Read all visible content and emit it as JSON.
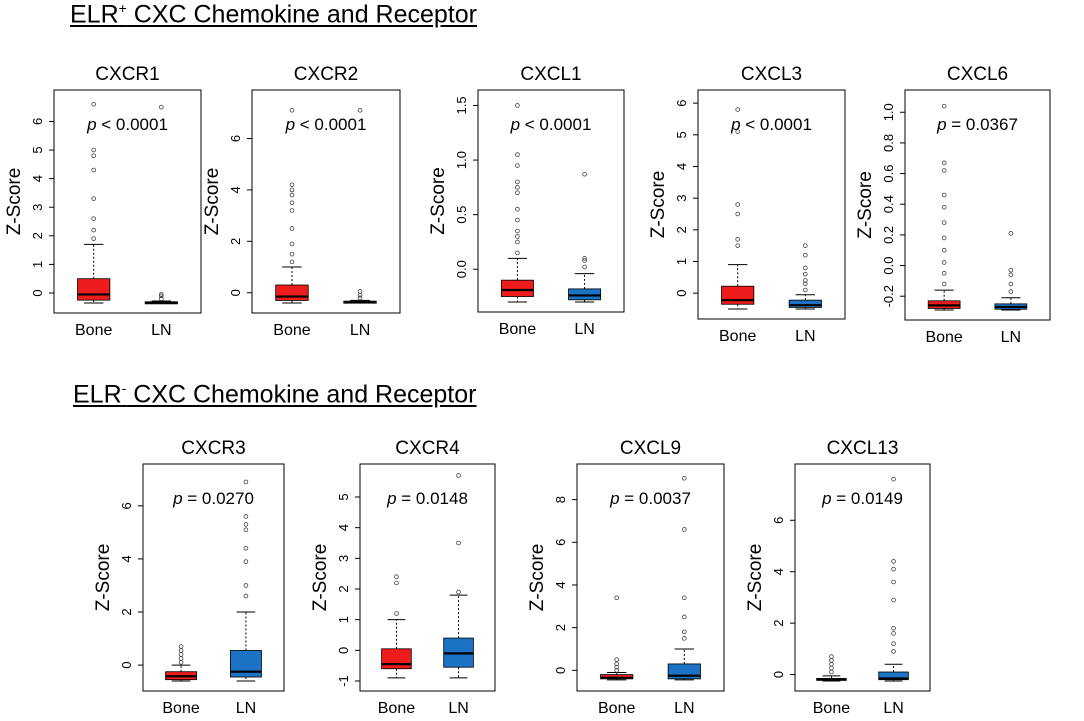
{
  "sections": {
    "top": {
      "title_main": "ELR",
      "title_sup": "+",
      "title_rest": " CXC Chemokine and Receptor"
    },
    "bottom": {
      "title_main": "ELR",
      "title_sup": "-",
      "title_rest": " CXC Chemokine and Receptor"
    }
  },
  "colors": {
    "bone": "#ee1c1c",
    "ln": "#1c72c4",
    "axis": "#000000"
  },
  "chart_data": [
    {
      "type": "boxplot",
      "title": "CXCR1",
      "ylabel": "Z-Score",
      "p_prefix": "p",
      "p_text": " < 0.0001",
      "categories": [
        "Bone",
        "LN"
      ],
      "yticks": [
        0,
        1,
        2,
        3,
        4,
        5,
        6
      ],
      "ylim": [
        -0.35,
        6.75
      ],
      "boxes": [
        {
          "name": "Bone",
          "q1": -0.25,
          "median": -0.05,
          "q3": 0.5,
          "whisker_low": -0.35,
          "whisker_high": 1.7,
          "outliers": [
            1.9,
            2.2,
            2.6,
            3.3,
            4.3,
            4.8,
            5.0,
            6.6
          ]
        },
        {
          "name": "LN",
          "q1": -0.35,
          "median": -0.33,
          "q3": -0.31,
          "whisker_low": -0.35,
          "whisker_high": -0.28,
          "outliers": [
            -0.2,
            -0.1,
            -0.05,
            6.5
          ]
        }
      ]
    },
    {
      "type": "boxplot",
      "title": "CXCR2",
      "ylabel": "Z-Score",
      "p_prefix": "p",
      "p_text": " < 0.0001",
      "categories": [
        "Bone",
        "LN"
      ],
      "yticks": [
        0,
        2,
        4,
        6
      ],
      "ylim": [
        -0.4,
        7.5
      ],
      "boxes": [
        {
          "name": "Bone",
          "q1": -0.3,
          "median": -0.15,
          "q3": 0.3,
          "whisker_low": -0.4,
          "whisker_high": 1.0,
          "outliers": [
            1.2,
            1.5,
            1.9,
            2.5,
            3.2,
            3.5,
            3.8,
            4.0,
            4.2,
            7.1
          ]
        },
        {
          "name": "LN",
          "q1": -0.38,
          "median": -0.36,
          "q3": -0.33,
          "whisker_low": -0.4,
          "whisker_high": -0.3,
          "outliers": [
            -0.2,
            -0.1,
            0.05,
            7.1
          ]
        }
      ]
    },
    {
      "type": "boxplot",
      "title": "CXCL1",
      "ylabel": "Z-Score",
      "p_prefix": "p",
      "p_text": " < 0.0001",
      "categories": [
        "Bone",
        "LN"
      ],
      "yticks": [
        0.0,
        0.5,
        1.0,
        1.5
      ],
      "ytick_labels": [
        "0.0",
        "0.5",
        "1.0",
        "1.5"
      ],
      "ylim": [
        -0.3,
        1.55
      ],
      "boxes": [
        {
          "name": "Bone",
          "q1": -0.25,
          "median": -0.19,
          "q3": -0.1,
          "whisker_low": -0.3,
          "whisker_high": 0.1,
          "outliers": [
            0.15,
            0.25,
            0.3,
            0.35,
            0.45,
            0.55,
            0.7,
            0.75,
            0.8,
            0.95,
            1.05,
            1.5
          ]
        },
        {
          "name": "LN",
          "q1": -0.28,
          "median": -0.24,
          "q3": -0.18,
          "whisker_low": -0.3,
          "whisker_high": -0.04,
          "outliers": [
            0.02,
            0.08,
            0.1,
            0.87
          ]
        }
      ]
    },
    {
      "type": "boxplot",
      "title": "CXCL3",
      "ylabel": "Z-Score",
      "p_prefix": "p",
      "p_text": " < 0.0001",
      "categories": [
        "Bone",
        "LN"
      ],
      "yticks": [
        0,
        1,
        2,
        3,
        4,
        5,
        6
      ],
      "ylim": [
        -0.5,
        6.1
      ],
      "boxes": [
        {
          "name": "Bone",
          "q1": -0.35,
          "median": -0.22,
          "q3": 0.22,
          "whisker_low": -0.5,
          "whisker_high": 0.9,
          "outliers": [
            1.5,
            1.7,
            2.5,
            2.8,
            5.1,
            5.8
          ]
        },
        {
          "name": "LN",
          "q1": -0.45,
          "median": -0.38,
          "q3": -0.22,
          "whisker_low": -0.5,
          "whisker_high": -0.05,
          "outliers": [
            0.1,
            0.3,
            0.4,
            0.6,
            0.8,
            1.2,
            1.5
          ]
        }
      ]
    },
    {
      "type": "boxplot",
      "title": "CXCL6",
      "ylabel": "Z-Score",
      "p_prefix": "p",
      "p_text": " = 0.0367",
      "categories": [
        "Bone",
        "LN"
      ],
      "yticks": [
        -0.2,
        0.0,
        0.2,
        0.4,
        0.6,
        0.8,
        1.0
      ],
      "ytick_labels": [
        "-0.2",
        "0.0",
        "0.2",
        "0.4",
        "0.6",
        "0.8",
        "1.0"
      ],
      "ylim": [
        -0.29,
        1.08
      ],
      "boxes": [
        {
          "name": "Bone",
          "q1": -0.28,
          "median": -0.26,
          "q3": -0.23,
          "whisker_low": -0.29,
          "whisker_high": -0.16,
          "outliers": [
            -0.12,
            -0.05,
            0.02,
            0.1,
            0.18,
            0.28,
            0.38,
            0.46,
            0.62,
            0.67,
            1.04
          ]
        },
        {
          "name": "LN",
          "q1": -0.285,
          "median": -0.27,
          "q3": -0.25,
          "whisker_low": -0.29,
          "whisker_high": -0.21,
          "outliers": [
            -0.17,
            -0.12,
            -0.06,
            -0.03,
            0.21
          ]
        }
      ]
    },
    {
      "type": "boxplot",
      "title": "CXCR3",
      "ylabel": "Z-Score",
      "p_prefix": "p",
      "p_text": " = 0.0270",
      "categories": [
        "Bone",
        "LN"
      ],
      "yticks": [
        0,
        2,
        4,
        6
      ],
      "ylim": [
        -0.6,
        7.2
      ],
      "boxes": [
        {
          "name": "Bone",
          "q1": -0.55,
          "median": -0.42,
          "q3": -0.25,
          "whisker_low": -0.6,
          "whisker_high": 0.0,
          "outliers": [
            0.1,
            0.25,
            0.4,
            0.55,
            0.7
          ]
        },
        {
          "name": "LN",
          "q1": -0.45,
          "median": -0.25,
          "q3": 0.55,
          "whisker_low": -0.6,
          "whisker_high": 2.0,
          "outliers": [
            2.6,
            3.0,
            3.9,
            4.4,
            5.1,
            5.3,
            5.6,
            6.9
          ]
        }
      ]
    },
    {
      "type": "boxplot",
      "title": "CXCR4",
      "ylabel": "Z-Score",
      "p_prefix": "p",
      "p_text": " = 0.0148",
      "categories": [
        "Bone",
        "LN"
      ],
      "yticks": [
        -1,
        0,
        1,
        2,
        3,
        4,
        5
      ],
      "ylim": [
        -1.0,
        5.75
      ],
      "boxes": [
        {
          "name": "Bone",
          "q1": -0.6,
          "median": -0.45,
          "q3": 0.05,
          "whisker_low": -0.9,
          "whisker_high": 1.0,
          "outliers": [
            1.2,
            2.2,
            2.4
          ]
        },
        {
          "name": "LN",
          "q1": -0.55,
          "median": -0.1,
          "q3": 0.4,
          "whisker_low": -0.9,
          "whisker_high": 1.8,
          "outliers": [
            1.9,
            3.5,
            5.7
          ]
        }
      ]
    },
    {
      "type": "boxplot",
      "title": "CXCL9",
      "ylabel": "Z-Score",
      "p_prefix": "p",
      "p_text": " = 0.0037",
      "categories": [
        "Bone",
        "LN"
      ],
      "yticks": [
        0,
        2,
        4,
        6,
        8
      ],
      "ylim": [
        -0.5,
        9.2
      ],
      "boxes": [
        {
          "name": "Bone",
          "q1": -0.4,
          "median": -0.35,
          "q3": -0.2,
          "whisker_low": -0.45,
          "whisker_high": -0.1,
          "outliers": [
            0.0,
            0.15,
            0.3,
            0.5,
            3.4
          ]
        },
        {
          "name": "LN",
          "q1": -0.4,
          "median": -0.25,
          "q3": 0.3,
          "whisker_low": -0.45,
          "whisker_high": 1.0,
          "outliers": [
            1.5,
            1.8,
            2.5,
            3.4,
            6.6,
            9.0
          ]
        }
      ]
    },
    {
      "type": "boxplot",
      "title": "CXCL13",
      "ylabel": "Z-Score",
      "p_prefix": "p",
      "p_text": " = 0.0149",
      "categories": [
        "Bone",
        "LN"
      ],
      "yticks": [
        0,
        2,
        4,
        6
      ],
      "ylim": [
        -0.25,
        7.8
      ],
      "boxes": [
        {
          "name": "Bone",
          "q1": -0.2,
          "median": -0.18,
          "q3": -0.15,
          "whisker_low": -0.25,
          "whisker_high": -0.05,
          "outliers": [
            0.1,
            0.25,
            0.4,
            0.55,
            0.7
          ]
        },
        {
          "name": "LN",
          "q1": -0.2,
          "median": -0.15,
          "q3": 0.1,
          "whisker_low": -0.25,
          "whisker_high": 0.4,
          "outliers": [
            0.9,
            1.2,
            1.6,
            1.8,
            2.9,
            3.6,
            4.1,
            4.4,
            7.6
          ]
        }
      ]
    }
  ]
}
